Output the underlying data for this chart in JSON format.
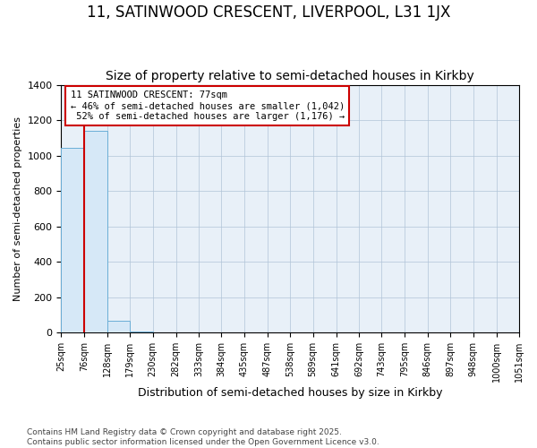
{
  "title": "11, SATINWOOD CRESCENT, LIVERPOOL, L31 1JX",
  "subtitle": "Size of property relative to semi-detached houses in Kirkby",
  "xlabel": "Distribution of semi-detached houses by size in Kirkby",
  "ylabel": "Number of semi-detached properties",
  "footer": "Contains HM Land Registry data © Crown copyright and database right 2025.\nContains public sector information licensed under the Open Government Licence v3.0.",
  "bins": [
    25,
    76,
    128,
    179,
    230,
    282,
    333,
    384,
    435,
    487,
    538,
    589,
    641,
    692,
    743,
    795,
    846,
    897,
    948,
    1000,
    1051
  ],
  "counts": [
    1042,
    1140,
    65,
    5,
    2,
    1,
    1,
    0,
    1,
    0,
    0,
    0,
    0,
    0,
    0,
    0,
    0,
    0,
    0,
    1
  ],
  "property_size": 77,
  "property_label": "11 SATINWOOD CRESCENT: 77sqm",
  "pct_smaller": 46,
  "n_smaller": 1042,
  "pct_larger": 52,
  "n_larger": 1176,
  "bar_color": "#d6e8f7",
  "bar_edge_color": "#6baed6",
  "red_line_color": "#cc0000",
  "annotation_box_color": "#cc0000",
  "bg_color": "#ffffff",
  "plot_bg_color": "#e8f0f8",
  "grid_color": "#b0c4d8",
  "ylim": [
    0,
    1400
  ],
  "title_fontsize": 12,
  "subtitle_fontsize": 10,
  "ylabel_fontsize": 8,
  "xlabel_fontsize": 9,
  "tick_fontsize": 7,
  "footer_fontsize": 6.5
}
